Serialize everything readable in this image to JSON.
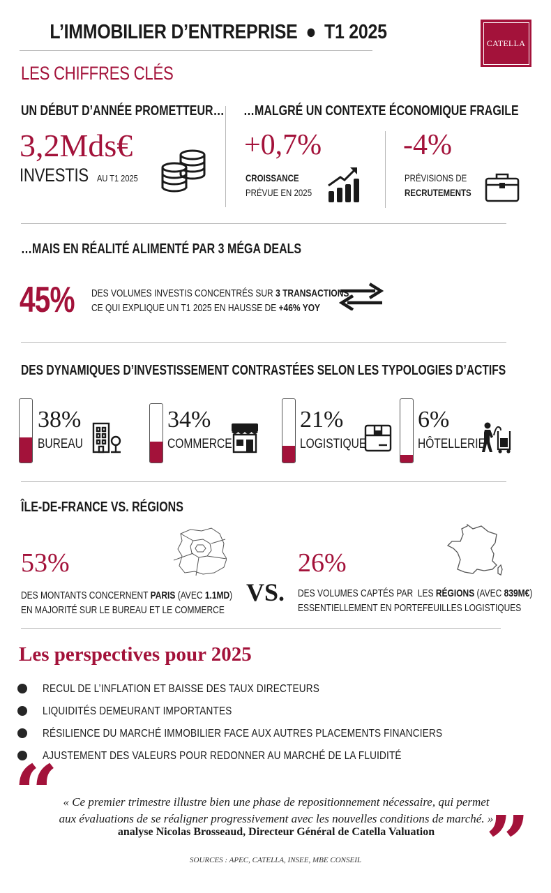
{
  "header": {
    "title": "L’IMMOBILIER D’ENTREPRISE",
    "title_dot": "●",
    "period": "T1 2025",
    "logo_text": "CATELLA"
  },
  "key_figures": {
    "title": "LES CHIFFRES CLÉS"
  },
  "promising": {
    "heading": "UN DÉBUT D’ANNÉE PROMETTEUR…",
    "value": "3,2Mds€",
    "label": "INVESTIS",
    "label_suffix": "AU T1 2025",
    "icon": "coins-icon"
  },
  "context": {
    "heading": "…MALGRÉ UN CONTEXTE ÉCONOMIQUE FRAGILE",
    "growth": {
      "value": "+0,7%",
      "label_bold": "CROISSANCE",
      "label": "PRÉVUE EN 2025",
      "icon": "chart-up-icon"
    },
    "recruit": {
      "value": "-4%",
      "label": "PRÉVISIONS DE",
      "label_bold": "RECRUTEMENTS",
      "icon": "briefcase-icon"
    }
  },
  "mega": {
    "heading": "…MAIS EN RÉALITÉ ALIMENTÉ PAR 3 MÉGA DEALS",
    "value": "45%",
    "line1_a": "DES VOLUMES INVESTIS CONCENTRÉS SUR",
    "line1_b": "3 TRANSACTIONS",
    "line1_c": ",",
    "line2_a": "CE QUI EXPLIQUE UN T1 2025 EN HAUSSE DE",
    "line2_b": "+46% YOY",
    "icon": "exchange-arrows-icon"
  },
  "dynamics": {
    "heading": "DES DYNAMIQUES D’INVESTISSEMENT CONTRASTÉES SELON LES TYPOLOGIES D’ACTIFS",
    "items": [
      {
        "value": "38%",
        "label": "BUREAU",
        "fill": 0.38,
        "icon": "office-building-icon"
      },
      {
        "value": "34%",
        "label": "COMMERCE",
        "fill": 0.34,
        "icon": "storefront-icon"
      },
      {
        "value": "21%",
        "label": "LOGISTIQUE",
        "fill": 0.21,
        "icon": "parcel-box-icon"
      },
      {
        "value": "6%",
        "label": "HÔTELLERIE",
        "fill": 0.06,
        "icon": "hotel-porter-icon"
      }
    ],
    "accent_color": "#a3123a"
  },
  "idf": {
    "heading": "ÎLE-DE-FRANCE VS. RÉGIONS",
    "left": {
      "value": "53%",
      "line1_a": "DES MONTANTS CONCERNENT",
      "line1_b": "PARIS",
      "line1_c": "(AVEC",
      "line1_d": "1.1MD",
      "line1_e": ")",
      "line2": "EN MAJORITÉ SUR LE BUREAU ET LE COMMERCE",
      "icon": "idf-map-icon"
    },
    "vs": "VS.",
    "right": {
      "value": "26%",
      "line1_a": "DES VOLUMES CAPTÉS PAR  LES",
      "line1_b": "RÉGIONS",
      "line1_c": "(AVEC",
      "line1_d": "839M€",
      "line1_e": ")",
      "line2": "ESSENTIELLEMENT EN PORTEFEUILLES LOGISTIQUES",
      "icon": "france-map-icon"
    }
  },
  "outlook": {
    "title": "Les perspectives pour 2025",
    "items": [
      "RECUL DE L’INFLATION ET BAISSE DES TAUX DIRECTEURS",
      "LIQUIDITÉS DEMEURANT IMPORTANTES",
      "RÉSILIENCE DU MARCHÉ IMMOBILIER FACE AUX AUTRES PLACEMENTS FINANCIERS",
      "AJUSTEMENT DES VALEURS POUR REDONNER AU MARCHÉ DE LA FLUIDITÉ"
    ]
  },
  "quote": {
    "open_mark": "“",
    "close_mark": "”",
    "line1": "« Ce premier trimestre illustre bien une phase de repositionnement nécessaire, qui permet",
    "line2": "aux évaluations de se réaligner progressivement avec les nouvelles conditions de marché. »",
    "author": "analyse Nicolas Brosseaud, Directeur Général de Catella Valuation"
  },
  "sources": "SOURCES : APEC, CATELLA, INSEE, MBE CONSEIL"
}
